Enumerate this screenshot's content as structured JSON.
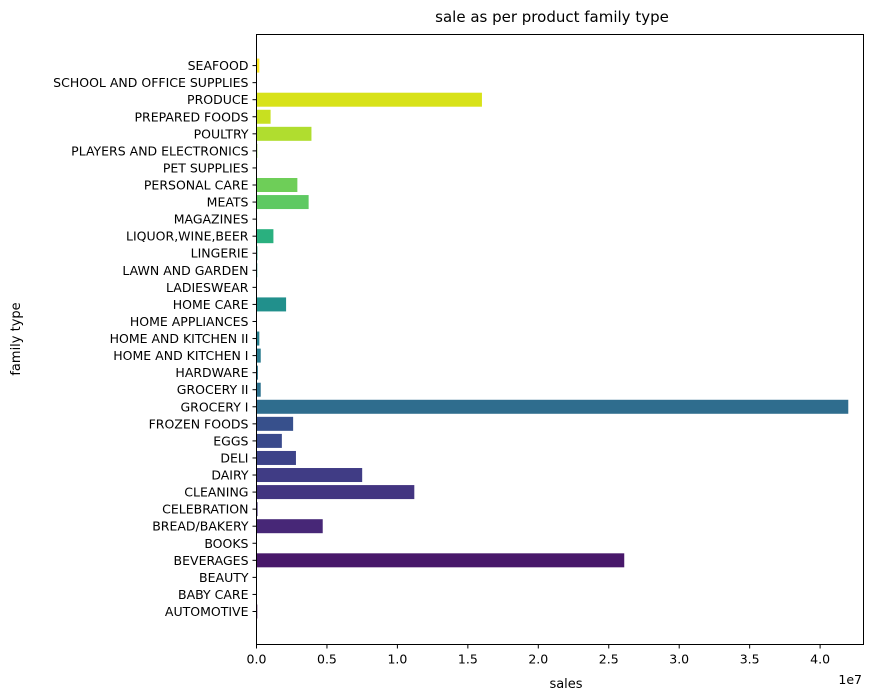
{
  "chart_data": {
    "type": "bar",
    "orientation": "horizontal",
    "title": "sale as per product family type",
    "xlabel": "sales",
    "ylabel": "family type",
    "x_scale_label": "1e7",
    "xlim": [
      0,
      4.4
    ],
    "x_ticks": [
      "0.0",
      "0.5",
      "1.0",
      "1.5",
      "2.0",
      "2.5",
      "3.0",
      "3.5",
      "4.0"
    ],
    "grid": false,
    "legend": "none",
    "units_note": "values in units of 1e7 sales",
    "categories": [
      "AUTOMOTIVE",
      "BABY CARE",
      "BEAUTY",
      "BEVERAGES",
      "BOOKS",
      "BREAD/BAKERY",
      "CELEBRATION",
      "CLEANING",
      "DAIRY",
      "DELI",
      "EGGS",
      "FROZEN FOODS",
      "GROCERY I",
      "GROCERY II",
      "HARDWARE",
      "HOME AND KITCHEN I",
      "HOME AND KITCHEN II",
      "HOME APPLIANCES",
      "HOME CARE",
      "LADIESWEAR",
      "LAWN AND GARDEN",
      "LINGERIE",
      "LIQUOR,WINE,BEER",
      "MAGAZINES",
      "MEATS",
      "PERSONAL CARE",
      "PET SUPPLIES",
      "PLAYERS AND ELECTRONICS",
      "POULTRY",
      "PREPARED FOODS",
      "PRODUCE",
      "SCHOOL AND OFFICE SUPPLIES",
      "SEAFOOD"
    ],
    "values": [
      0.0055,
      1e-05,
      0.0034,
      2.61,
      0.0001,
      0.47,
      0.0076,
      1.12,
      0.75,
      0.28,
      0.18,
      0.26,
      4.2,
      0.03,
      0.01,
      0.03,
      0.02,
      0.0004,
      0.21,
      0.0021,
      0.0055,
      0.0065,
      0.12,
      0.0039,
      0.37,
      0.29,
      0.0032,
      0.0059,
      0.39,
      0.1,
      1.6,
      0.0002,
      0.02
    ],
    "colors": [
      "#440154",
      "#46085c",
      "#471063",
      "#48186a",
      "#472070",
      "#472777",
      "#452e7c",
      "#433581",
      "#403c85",
      "#3d4389",
      "#3a4a8c",
      "#37508c",
      "#2f6d8e",
      "#2d718e",
      "#2b768e",
      "#297a8e",
      "#277f8e",
      "#25848e",
      "#21908c",
      "#1f958b",
      "#1f9a8a",
      "#22a785",
      "#2ab07f",
      "#34b679",
      "#5ec962",
      "#6ece58",
      "#7ad151",
      "#93d741",
      "#b0dd2f",
      "#c8e020",
      "#d8e219",
      "#e2e418",
      "#fde725"
    ]
  }
}
